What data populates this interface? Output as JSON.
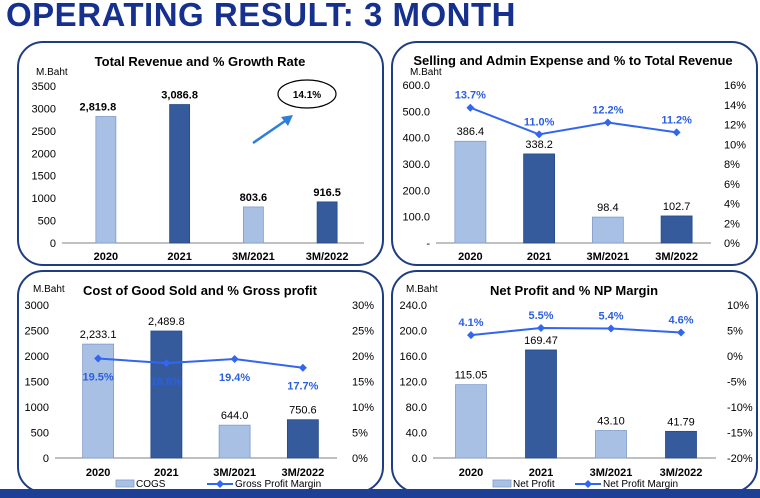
{
  "page": {
    "title": "OPERATING RESULT: 3 MONTH"
  },
  "charts": [
    {
      "type": "bar",
      "title": "Total Revenue and % Growth Rate",
      "ylabel": "M.Baht",
      "categories": [
        "2020",
        "2021",
        "3M/2021",
        "3M/2022"
      ],
      "values": [
        2819.8,
        3086.8,
        803.6,
        916.5
      ],
      "value_labels": [
        "2,819.8",
        "3,086.8",
        "803.6",
        "916.5"
      ],
      "ylim": [
        0,
        3500
      ],
      "yticks": [
        "0",
        "500",
        "1000",
        "1500",
        "2000",
        "2500",
        "3000",
        "3500"
      ],
      "annotation": "14.1%"
    },
    {
      "type": "bar+line",
      "title": "Selling and Admin Expense and % to Total Revenue",
      "ylabel": "M.Baht",
      "categories": [
        "2020",
        "2021",
        "3M/2021",
        "3M/2022"
      ],
      "values": [
        386.4,
        338.2,
        98.4,
        102.7
      ],
      "value_labels": [
        "386.4",
        "338.2",
        "98.4",
        "102.7"
      ],
      "ylim": [
        0,
        600
      ],
      "yticks": [
        "-",
        "100.0",
        "200.0",
        "300.0",
        "400.0",
        "500.0",
        "600.0"
      ],
      "line_values": [
        13.7,
        11.0,
        12.2,
        11.2
      ],
      "line_labels": [
        "13.7%",
        "11.0%",
        "12.2%",
        "11.2%"
      ],
      "y2lim": [
        0,
        16
      ],
      "y2ticks": [
        "0%",
        "2%",
        "4%",
        "6%",
        "8%",
        "10%",
        "12%",
        "14%",
        "16%"
      ]
    },
    {
      "type": "bar+line",
      "title": "Cost of Good Sold and % Gross profit",
      "ylabel": "M.Baht",
      "categories": [
        "2020",
        "2021",
        "3M/2021",
        "3M/2022"
      ],
      "values": [
        2233.1,
        2489.8,
        644.0,
        750.6
      ],
      "value_labels": [
        "2,233.1",
        "2,489.8",
        "644.0",
        "750.6"
      ],
      "ylim": [
        0,
        3000
      ],
      "yticks": [
        "0",
        "500",
        "1000",
        "1500",
        "2000",
        "2500",
        "3000"
      ],
      "line_values": [
        19.5,
        18.6,
        19.4,
        17.7
      ],
      "line_labels": [
        "19.5%",
        "18.6%",
        "19.4%",
        "17.7%"
      ],
      "y2lim": [
        0,
        30
      ],
      "y2ticks": [
        "0%",
        "5%",
        "10%",
        "15%",
        "20%",
        "25%",
        "30%"
      ],
      "legend": [
        "COGS",
        "Gross Profit Margin"
      ]
    },
    {
      "type": "bar+line",
      "title": "Net Profit and % NP Margin",
      "ylabel": "M.Baht",
      "categories": [
        "2020",
        "2021",
        "3M/2021",
        "3M/2022"
      ],
      "values": [
        115.05,
        169.47,
        43.1,
        41.79
      ],
      "value_labels": [
        "115.05",
        "169.47",
        "43.10",
        "41.79"
      ],
      "ylim": [
        0,
        240
      ],
      "yticks": [
        "0.0",
        "40.0",
        "80.0",
        "120.0",
        "160.0",
        "200.0",
        "240.0"
      ],
      "line_values": [
        4.1,
        5.5,
        5.4,
        4.6
      ],
      "line_labels": [
        "4.1%",
        "5.5%",
        "5.4%",
        "4.6%"
      ],
      "y2lim": [
        -20,
        10
      ],
      "y2ticks": [
        "-20%",
        "-15%",
        "-10%",
        "-5%",
        "0%",
        "5%",
        "10%"
      ],
      "legend": [
        "Net Profit",
        "Net Profit Margin"
      ]
    }
  ],
  "colors": {
    "bar_light": "#a8c0e4",
    "bar_dark": "#355b9c",
    "line": "#3366ee",
    "label_pct": "#2b5fe0",
    "frame": "#1f3d82",
    "title_blue": "#16308e"
  }
}
